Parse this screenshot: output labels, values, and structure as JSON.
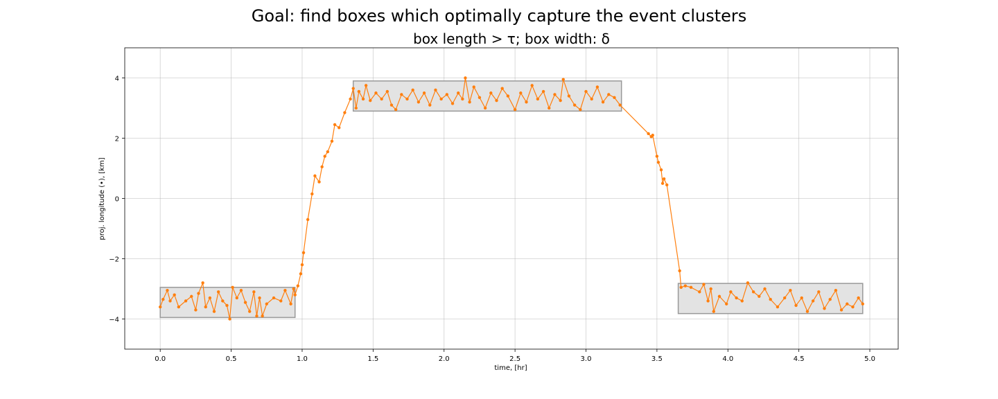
{
  "chart_data": {
    "type": "line",
    "title": "Goal: find boxes which optimally capture the event clusters",
    "subtitle": "box length > τ; box width: δ",
    "xlabel": "time, [hr]",
    "ylabel": "proj. longitude (•), [km]",
    "xlim": [
      -0.25,
      5.2
    ],
    "ylim": [
      -5,
      5
    ],
    "xticks": [
      {
        "value": 0,
        "label": "0.0"
      },
      {
        "value": 0.5,
        "label": "0.5"
      },
      {
        "value": 1,
        "label": "1.0"
      },
      {
        "value": 1.5,
        "label": "1.5"
      },
      {
        "value": 2,
        "label": "2.0"
      },
      {
        "value": 2.5,
        "label": "2.5"
      },
      {
        "value": 3,
        "label": "3.0"
      },
      {
        "value": 3.5,
        "label": "3.5"
      },
      {
        "value": 4,
        "label": "4.0"
      },
      {
        "value": 4.5,
        "label": "4.5"
      },
      {
        "value": 5,
        "label": "5.0"
      }
    ],
    "yticks": [
      {
        "value": -4,
        "label": "−4"
      },
      {
        "value": -2,
        "label": "−2"
      },
      0,
      2,
      4
    ],
    "grid": true,
    "color": "#ff7f0e",
    "box_color": "#e3e3e3",
    "boxes": [
      {
        "x": [
          0,
          0.95
        ],
        "y": [
          -3.95,
          -2.95
        ]
      },
      {
        "x": [
          1.36,
          3.25
        ],
        "y": [
          2.9,
          3.9
        ]
      },
      {
        "x": [
          3.65,
          4.95
        ],
        "y": [
          -3.82,
          -2.82
        ]
      }
    ],
    "x": [
      0.0,
      0.02,
      0.05,
      0.07,
      0.1,
      0.13,
      0.18,
      0.22,
      0.25,
      0.27,
      0.3,
      0.32,
      0.35,
      0.38,
      0.41,
      0.44,
      0.47,
      0.49,
      0.51,
      0.54,
      0.57,
      0.6,
      0.63,
      0.66,
      0.68,
      0.7,
      0.72,
      0.75,
      0.8,
      0.85,
      0.88,
      0.92,
      0.94,
      0.95,
      0.97,
      0.99,
      1.0,
      1.01,
      1.04,
      1.07,
      1.09,
      1.12,
      1.14,
      1.16,
      1.18,
      1.21,
      1.23,
      1.26,
      1.3,
      1.34,
      1.36,
      1.38,
      1.4,
      1.43,
      1.45,
      1.48,
      1.52,
      1.56,
      1.6,
      1.63,
      1.66,
      1.7,
      1.74,
      1.78,
      1.82,
      1.86,
      1.9,
      1.94,
      1.98,
      2.02,
      2.06,
      2.1,
      2.13,
      2.15,
      2.18,
      2.21,
      2.25,
      2.29,
      2.33,
      2.37,
      2.41,
      2.45,
      2.5,
      2.54,
      2.58,
      2.62,
      2.66,
      2.7,
      2.74,
      2.78,
      2.82,
      2.84,
      2.88,
      2.92,
      2.96,
      3.0,
      3.04,
      3.08,
      3.12,
      3.16,
      3.2,
      3.24,
      3.44,
      3.46,
      3.47,
      3.5,
      3.51,
      3.53,
      3.54,
      3.55,
      3.57,
      3.66,
      3.67,
      3.7,
      3.74,
      3.8,
      3.83,
      3.86,
      3.88,
      3.9,
      3.94,
      3.99,
      4.02,
      4.06,
      4.1,
      4.14,
      4.18,
      4.22,
      4.26,
      4.3,
      4.35,
      4.4,
      4.44,
      4.48,
      4.52,
      4.56,
      4.6,
      4.64,
      4.68,
      4.72,
      4.76,
      4.8,
      4.84,
      4.88,
      4.92,
      4.95
    ],
    "values": [
      -3.6,
      -3.35,
      -3.05,
      -3.4,
      -3.2,
      -3.6,
      -3.4,
      -3.25,
      -3.7,
      -3.15,
      -2.8,
      -3.6,
      -3.3,
      -3.75,
      -3.1,
      -3.4,
      -3.55,
      -4.0,
      -2.95,
      -3.3,
      -3.05,
      -3.45,
      -3.75,
      -3.1,
      -3.9,
      -3.3,
      -3.9,
      -3.5,
      -3.3,
      -3.4,
      -3.05,
      -3.5,
      -3.0,
      -3.2,
      -2.9,
      -2.5,
      -2.2,
      -1.8,
      -0.7,
      0.15,
      0.75,
      0.55,
      1.05,
      1.4,
      1.55,
      1.9,
      2.45,
      2.35,
      2.85,
      3.3,
      3.65,
      3.0,
      3.55,
      3.3,
      3.75,
      3.25,
      3.5,
      3.3,
      3.55,
      3.1,
      2.95,
      3.45,
      3.3,
      3.6,
      3.2,
      3.5,
      3.1,
      3.6,
      3.3,
      3.45,
      3.15,
      3.5,
      3.3,
      4.0,
      3.2,
      3.7,
      3.35,
      3.0,
      3.5,
      3.25,
      3.65,
      3.4,
      2.95,
      3.5,
      3.2,
      3.75,
      3.3,
      3.55,
      3.0,
      3.45,
      3.25,
      3.95,
      3.4,
      3.1,
      2.95,
      3.55,
      3.3,
      3.7,
      3.2,
      3.45,
      3.35,
      3.1,
      2.15,
      2.05,
      2.1,
      1.4,
      1.2,
      0.95,
      0.5,
      0.65,
      0.45,
      -2.4,
      -2.95,
      -2.9,
      -2.95,
      -3.1,
      -2.85,
      -3.4,
      -3.0,
      -3.75,
      -3.25,
      -3.5,
      -3.1,
      -3.3,
      -3.4,
      -2.8,
      -3.1,
      -3.25,
      -3.0,
      -3.35,
      -3.6,
      -3.3,
      -3.05,
      -3.55,
      -3.3,
      -3.75,
      -3.4,
      -3.1,
      -3.65,
      -3.35,
      -3.05,
      -3.7,
      -3.5,
      -3.6,
      -3.3,
      -3.5
    ]
  }
}
